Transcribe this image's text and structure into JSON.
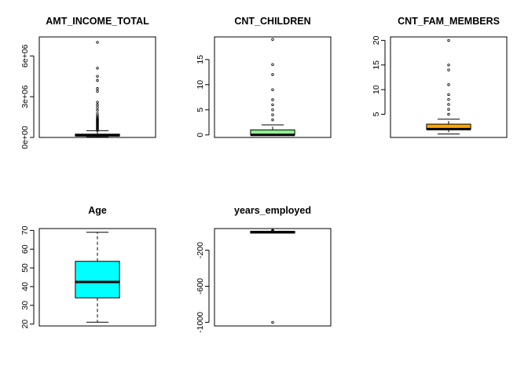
{
  "chart_data": [
    {
      "type": "boxplot",
      "title": "AMT_INCOME_TOTAL",
      "color": "#000000",
      "ylim": [
        0,
        7400000
      ],
      "ticks": [
        0,
        3000000,
        6000000
      ],
      "tick_labels": [
        "0e+00",
        "3e+06",
        "6e+06"
      ],
      "stats": {
        "whisker_low": 30000,
        "q1": 120000,
        "median": 160000,
        "q3": 230000,
        "whisker_high": 500000
      },
      "outliers": [
        520000,
        580000,
        640000,
        700000,
        760000,
        820000,
        880000,
        940000,
        1000000,
        1050000,
        1100000,
        1150000,
        1200000,
        1250000,
        1300000,
        1350000,
        1400000,
        1500000,
        1600000,
        1750000,
        2000000,
        2200000,
        2400000,
        2600000,
        3400000,
        3600000,
        4200000,
        4500000,
        5100000,
        7000000
      ]
    },
    {
      "type": "boxplot",
      "title": "CNT_CHILDREN",
      "color": "#90ee90",
      "ylim": [
        -0.5,
        19.5
      ],
      "ticks": [
        0,
        5,
        10,
        15
      ],
      "tick_labels": [
        "0",
        "5",
        "10",
        "15"
      ],
      "stats": {
        "whisker_low": 0,
        "q1": 0,
        "median": 0,
        "q3": 1,
        "whisker_high": 2
      },
      "outliers": [
        3,
        4,
        5,
        6,
        7,
        9,
        12,
        14,
        19
      ]
    },
    {
      "type": "boxplot",
      "title": "CNT_FAM_MEMBERS",
      "color": "#ffa500",
      "ylim": [
        0.3,
        20.7
      ],
      "ticks": [
        5,
        10,
        15,
        20
      ],
      "tick_labels": [
        "5",
        "10",
        "15",
        "20"
      ],
      "stats": {
        "whisker_low": 1,
        "q1": 2,
        "median": 2,
        "q3": 3,
        "whisker_high": 4
      },
      "outliers": [
        5,
        6,
        7,
        8,
        9,
        11,
        14,
        15,
        20
      ]
    },
    {
      "type": "boxplot",
      "title": "Age",
      "color": "#00ffff",
      "ylim": [
        19,
        71
      ],
      "ticks": [
        20,
        30,
        40,
        50,
        60,
        70
      ],
      "tick_labels": [
        "20",
        "30",
        "40",
        "50",
        "60",
        "70"
      ],
      "stats": {
        "whisker_low": 21,
        "q1": 34,
        "median": 42.5,
        "q3": 53.5,
        "whisker_high": 69
      },
      "outliers": []
    },
    {
      "type": "boxplot",
      "title": "years_employed",
      "color": "#000000",
      "ylim": [
        -1040,
        40
      ],
      "ticks": [
        -1000,
        -600,
        -200
      ],
      "tick_labels": [
        "-1000",
        "-600",
        "-200"
      ],
      "stats": {
        "whisker_low": -4,
        "q1": -2,
        "median": 0,
        "q3": 2,
        "whisker_high": 6
      },
      "outliers": [
        10,
        12,
        14,
        16,
        18,
        20,
        -1000
      ]
    }
  ]
}
